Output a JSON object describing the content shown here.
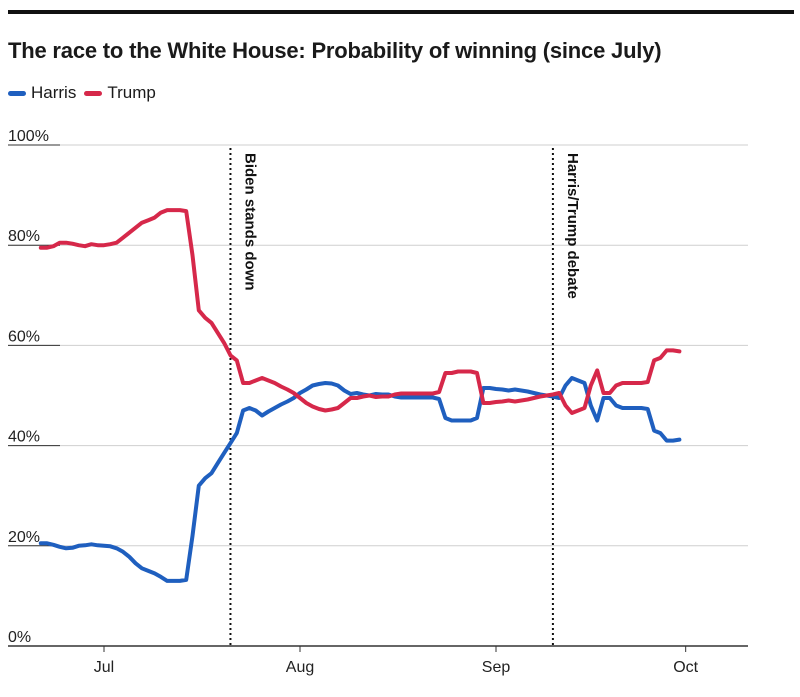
{
  "title": "The race to the White House: Probability of winning (since July)",
  "legend": {
    "harris_label": "Harris",
    "trump_label": "Trump"
  },
  "colors": {
    "harris": "#1f5fbf",
    "trump": "#d6284a"
  },
  "chart_data": {
    "type": "line",
    "title": "The race to the White House: Probability of winning (since July)",
    "xlabel": "",
    "ylabel": "",
    "ylim": [
      0,
      100
    ],
    "y_ticks": [
      "0%",
      "20%",
      "40%",
      "60%",
      "80%",
      "100%"
    ],
    "x_ticks": [
      {
        "label": "Jul",
        "date": "2024-07-01"
      },
      {
        "label": "Aug",
        "date": "2024-08-01"
      },
      {
        "label": "Sep",
        "date": "2024-09-01"
      },
      {
        "label": "Oct",
        "date": "2024-10-01"
      }
    ],
    "grid": true,
    "legend_position": "top-left",
    "annotations": [
      {
        "label": "Biden stands down",
        "date": "2024-07-21"
      },
      {
        "label": "Harris/Trump debate",
        "date": "2024-09-10"
      }
    ],
    "series": [
      {
        "name": "Harris",
        "points": [
          [
            "2024-06-21",
            20.5
          ],
          [
            "2024-06-22",
            20.5
          ],
          [
            "2024-06-23",
            20.2
          ],
          [
            "2024-06-24",
            19.8
          ],
          [
            "2024-06-25",
            19.5
          ],
          [
            "2024-06-26",
            19.6
          ],
          [
            "2024-06-27",
            20.0
          ],
          [
            "2024-06-28",
            20.1
          ],
          [
            "2024-06-29",
            20.3
          ],
          [
            "2024-06-30",
            20.1
          ],
          [
            "2024-07-01",
            20.0
          ],
          [
            "2024-07-02",
            19.9
          ],
          [
            "2024-07-03",
            19.5
          ],
          [
            "2024-07-04",
            18.8
          ],
          [
            "2024-07-05",
            17.8
          ],
          [
            "2024-07-06",
            16.5
          ],
          [
            "2024-07-07",
            15.5
          ],
          [
            "2024-07-08",
            15.0
          ],
          [
            "2024-07-09",
            14.5
          ],
          [
            "2024-07-10",
            13.8
          ],
          [
            "2024-07-11",
            13.0
          ],
          [
            "2024-07-12",
            13.0
          ],
          [
            "2024-07-13",
            13.0
          ],
          [
            "2024-07-14",
            13.2
          ],
          [
            "2024-07-15",
            22.0
          ],
          [
            "2024-07-16",
            32.0
          ],
          [
            "2024-07-17",
            33.5
          ],
          [
            "2024-07-18",
            34.5
          ],
          [
            "2024-07-19",
            36.5
          ],
          [
            "2024-07-20",
            38.5
          ],
          [
            "2024-07-21",
            40.5
          ],
          [
            "2024-07-22",
            42.5
          ],
          [
            "2024-07-23",
            47.0
          ],
          [
            "2024-07-24",
            47.5
          ],
          [
            "2024-07-25",
            47.0
          ],
          [
            "2024-07-26",
            46.0
          ],
          [
            "2024-07-27",
            46.8
          ],
          [
            "2024-07-28",
            47.5
          ],
          [
            "2024-07-29",
            48.2
          ],
          [
            "2024-07-30",
            48.8
          ],
          [
            "2024-07-31",
            49.5
          ],
          [
            "2024-08-01",
            50.5
          ],
          [
            "2024-08-02",
            51.2
          ],
          [
            "2024-08-03",
            52.0
          ],
          [
            "2024-08-04",
            52.3
          ],
          [
            "2024-08-05",
            52.5
          ],
          [
            "2024-08-06",
            52.4
          ],
          [
            "2024-08-07",
            52.0
          ],
          [
            "2024-08-08",
            51.0
          ],
          [
            "2024-08-09",
            50.3
          ],
          [
            "2024-08-10",
            50.5
          ],
          [
            "2024-08-11",
            50.2
          ],
          [
            "2024-08-12",
            50.0
          ],
          [
            "2024-08-13",
            50.3
          ],
          [
            "2024-08-14",
            50.2
          ],
          [
            "2024-08-15",
            50.2
          ],
          [
            "2024-08-16",
            49.8
          ],
          [
            "2024-08-17",
            49.6
          ],
          [
            "2024-08-18",
            49.6
          ],
          [
            "2024-08-19",
            49.6
          ],
          [
            "2024-08-20",
            49.6
          ],
          [
            "2024-08-21",
            49.6
          ],
          [
            "2024-08-22",
            49.6
          ],
          [
            "2024-08-23",
            49.3
          ],
          [
            "2024-08-24",
            45.5
          ],
          [
            "2024-08-25",
            45.0
          ],
          [
            "2024-08-26",
            45.0
          ],
          [
            "2024-08-27",
            45.0
          ],
          [
            "2024-08-28",
            45.0
          ],
          [
            "2024-08-29",
            45.5
          ],
          [
            "2024-08-30",
            51.5
          ],
          [
            "2024-08-31",
            51.5
          ],
          [
            "2024-09-01",
            51.3
          ],
          [
            "2024-09-02",
            51.2
          ],
          [
            "2024-09-03",
            51.0
          ],
          [
            "2024-09-04",
            51.2
          ],
          [
            "2024-09-05",
            51.0
          ],
          [
            "2024-09-06",
            50.8
          ],
          [
            "2024-09-07",
            50.5
          ],
          [
            "2024-09-08",
            50.2
          ],
          [
            "2024-09-09",
            50.0
          ],
          [
            "2024-09-10",
            49.8
          ],
          [
            "2024-09-11",
            49.5
          ],
          [
            "2024-09-12",
            52.0
          ],
          [
            "2024-09-13",
            53.5
          ],
          [
            "2024-09-14",
            53.0
          ],
          [
            "2024-09-15",
            52.5
          ],
          [
            "2024-09-16",
            48.0
          ],
          [
            "2024-09-17",
            45.0
          ],
          [
            "2024-09-18",
            49.5
          ],
          [
            "2024-09-19",
            49.5
          ],
          [
            "2024-09-20",
            48.0
          ],
          [
            "2024-09-21",
            47.5
          ],
          [
            "2024-09-22",
            47.5
          ],
          [
            "2024-09-23",
            47.5
          ],
          [
            "2024-09-24",
            47.5
          ],
          [
            "2024-09-25",
            47.3
          ],
          [
            "2024-09-26",
            43.0
          ],
          [
            "2024-09-27",
            42.5
          ],
          [
            "2024-09-28",
            41.0
          ],
          [
            "2024-09-29",
            41.0
          ],
          [
            "2024-09-30",
            41.2
          ]
        ]
      },
      {
        "name": "Trump",
        "points": [
          [
            "2024-06-21",
            79.5
          ],
          [
            "2024-06-22",
            79.5
          ],
          [
            "2024-06-23",
            79.8
          ],
          [
            "2024-06-24",
            80.5
          ],
          [
            "2024-06-25",
            80.5
          ],
          [
            "2024-06-26",
            80.3
          ],
          [
            "2024-06-27",
            80.0
          ],
          [
            "2024-06-28",
            79.8
          ],
          [
            "2024-06-29",
            80.2
          ],
          [
            "2024-06-30",
            80.0
          ],
          [
            "2024-07-01",
            80.0
          ],
          [
            "2024-07-02",
            80.2
          ],
          [
            "2024-07-03",
            80.5
          ],
          [
            "2024-07-04",
            81.5
          ],
          [
            "2024-07-05",
            82.5
          ],
          [
            "2024-07-06",
            83.5
          ],
          [
            "2024-07-07",
            84.5
          ],
          [
            "2024-07-08",
            85.0
          ],
          [
            "2024-07-09",
            85.5
          ],
          [
            "2024-07-10",
            86.5
          ],
          [
            "2024-07-11",
            87.0
          ],
          [
            "2024-07-12",
            87.0
          ],
          [
            "2024-07-13",
            87.0
          ],
          [
            "2024-07-14",
            86.8
          ],
          [
            "2024-07-15",
            78.0
          ],
          [
            "2024-07-16",
            67.0
          ],
          [
            "2024-07-17",
            65.5
          ],
          [
            "2024-07-18",
            64.5
          ],
          [
            "2024-07-19",
            62.5
          ],
          [
            "2024-07-20",
            60.5
          ],
          [
            "2024-07-21",
            58.0
          ],
          [
            "2024-07-22",
            57.0
          ],
          [
            "2024-07-23",
            52.5
          ],
          [
            "2024-07-24",
            52.5
          ],
          [
            "2024-07-25",
            53.0
          ],
          [
            "2024-07-26",
            53.5
          ],
          [
            "2024-07-27",
            53.0
          ],
          [
            "2024-07-28",
            52.5
          ],
          [
            "2024-07-29",
            51.8
          ],
          [
            "2024-07-30",
            51.2
          ],
          [
            "2024-07-31",
            50.5
          ],
          [
            "2024-08-01",
            49.5
          ],
          [
            "2024-08-02",
            48.5
          ],
          [
            "2024-08-03",
            47.8
          ],
          [
            "2024-08-04",
            47.3
          ],
          [
            "2024-08-05",
            47.0
          ],
          [
            "2024-08-06",
            47.2
          ],
          [
            "2024-08-07",
            47.5
          ],
          [
            "2024-08-08",
            48.5
          ],
          [
            "2024-08-09",
            49.5
          ],
          [
            "2024-08-10",
            49.5
          ],
          [
            "2024-08-11",
            49.8
          ],
          [
            "2024-08-12",
            50.0
          ],
          [
            "2024-08-13",
            49.7
          ],
          [
            "2024-08-14",
            49.8
          ],
          [
            "2024-08-15",
            49.8
          ],
          [
            "2024-08-16",
            50.2
          ],
          [
            "2024-08-17",
            50.4
          ],
          [
            "2024-08-18",
            50.4
          ],
          [
            "2024-08-19",
            50.4
          ],
          [
            "2024-08-20",
            50.4
          ],
          [
            "2024-08-21",
            50.4
          ],
          [
            "2024-08-22",
            50.4
          ],
          [
            "2024-08-23",
            50.7
          ],
          [
            "2024-08-24",
            54.5
          ],
          [
            "2024-08-25",
            54.5
          ],
          [
            "2024-08-26",
            54.8
          ],
          [
            "2024-08-27",
            54.8
          ],
          [
            "2024-08-28",
            54.8
          ],
          [
            "2024-08-29",
            54.5
          ],
          [
            "2024-08-30",
            48.5
          ],
          [
            "2024-08-31",
            48.5
          ],
          [
            "2024-09-01",
            48.7
          ],
          [
            "2024-09-02",
            48.8
          ],
          [
            "2024-09-03",
            49.0
          ],
          [
            "2024-09-04",
            48.8
          ],
          [
            "2024-09-05",
            49.0
          ],
          [
            "2024-09-06",
            49.2
          ],
          [
            "2024-09-07",
            49.5
          ],
          [
            "2024-09-08",
            49.8
          ],
          [
            "2024-09-09",
            50.0
          ],
          [
            "2024-09-10",
            50.2
          ],
          [
            "2024-09-11",
            50.5
          ],
          [
            "2024-09-12",
            48.0
          ],
          [
            "2024-09-13",
            46.5
          ],
          [
            "2024-09-14",
            47.0
          ],
          [
            "2024-09-15",
            47.5
          ],
          [
            "2024-09-16",
            52.0
          ],
          [
            "2024-09-17",
            55.0
          ],
          [
            "2024-09-18",
            50.5
          ],
          [
            "2024-09-19",
            50.5
          ],
          [
            "2024-09-20",
            52.0
          ],
          [
            "2024-09-21",
            52.5
          ],
          [
            "2024-09-22",
            52.5
          ],
          [
            "2024-09-23",
            52.5
          ],
          [
            "2024-09-24",
            52.5
          ],
          [
            "2024-09-25",
            52.7
          ],
          [
            "2024-09-26",
            57.0
          ],
          [
            "2024-09-27",
            57.5
          ],
          [
            "2024-09-28",
            59.0
          ],
          [
            "2024-09-29",
            59.0
          ],
          [
            "2024-09-30",
            58.8
          ]
        ]
      }
    ]
  }
}
